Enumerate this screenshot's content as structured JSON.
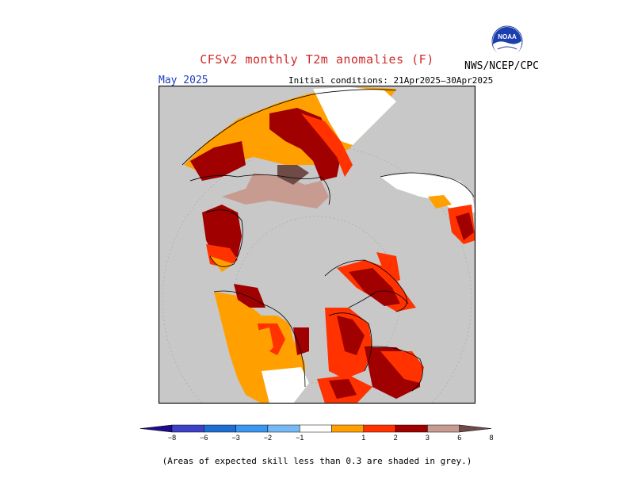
{
  "header": {
    "title": "CFSv2 monthly T2m anomalies (F)",
    "agency": "NWS/NCEP/CPC",
    "forecast_month": "May 2025",
    "initial_conditions": "Initial conditions: 21Apr2025–30Apr2025"
  },
  "logo": {
    "icon": "noaa-logo-icon",
    "text": "NOAA"
  },
  "legend": {
    "labels": [
      "−8",
      "−6",
      "−3",
      "−2",
      "−1",
      "1",
      "2",
      "3",
      "6",
      "8"
    ],
    "colors": [
      "#1e0c8c",
      "#3f40c8",
      "#1e6ed2",
      "#3a96ee",
      "#78b9f5",
      "#ffffff",
      "#ffa000",
      "#ff3200",
      "#a00000",
      "#c89b91",
      "#6e4b46"
    ]
  },
  "map_colors": {
    "grey": "#c8c8c8",
    "white": "#ffffff",
    "orange": "#ffa000",
    "red": "#ff3200",
    "darkred": "#a00000",
    "pink": "#c89b91",
    "brown": "#6e4b46"
  },
  "footnote": "(Areas of expected skill less than 0.3 are shaded in grey.)"
}
